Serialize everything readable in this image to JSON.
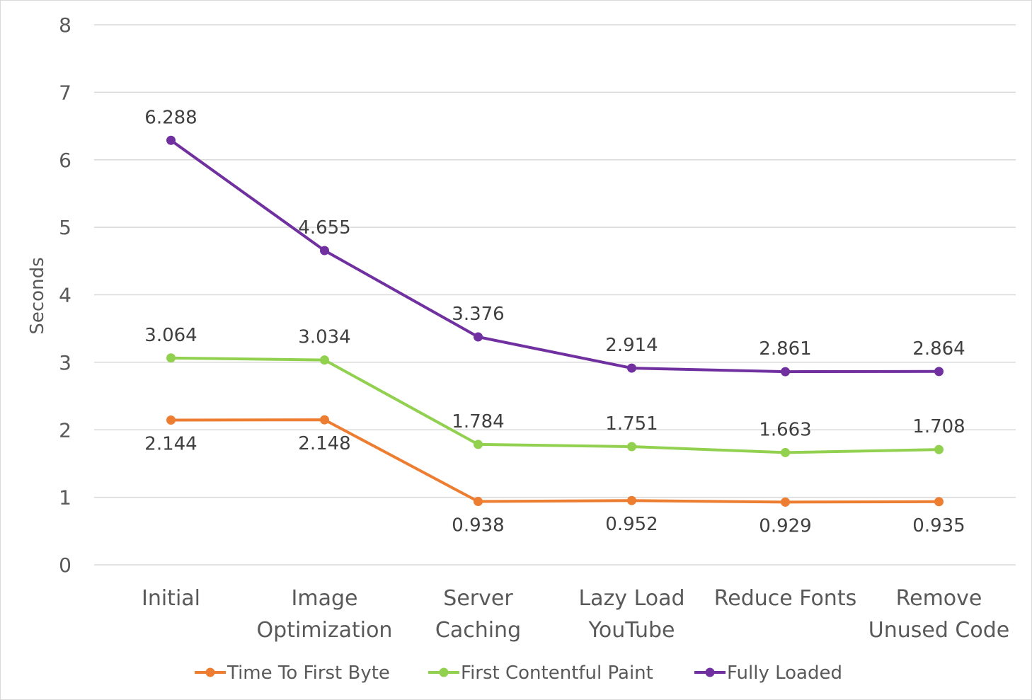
{
  "chart_data": {
    "type": "line",
    "ylabel": "Seconds",
    "ylim": [
      0,
      8
    ],
    "yticks": [
      0,
      1,
      2,
      3,
      4,
      5,
      6,
      7,
      8
    ],
    "grid": true,
    "legend_position": "bottom",
    "categories": [
      [
        "Initial"
      ],
      [
        "Image",
        "Optimization"
      ],
      [
        "Server",
        "Caching"
      ],
      [
        "Lazy Load",
        "YouTube"
      ],
      [
        "Reduce Fonts"
      ],
      [
        "Remove",
        "Unused Code"
      ]
    ],
    "series": [
      {
        "name": "Time To First Byte",
        "color": "#ed7d31",
        "values": [
          2.144,
          2.148,
          0.938,
          0.952,
          0.929,
          0.935
        ],
        "labels": [
          "2.144",
          "2.148",
          "0.938",
          "0.952",
          "0.929",
          "0.935"
        ],
        "label_position": "below"
      },
      {
        "name": "First Contentful Paint",
        "color": "#92d050",
        "values": [
          3.064,
          3.034,
          1.784,
          1.751,
          1.663,
          1.708
        ],
        "labels": [
          "3.064",
          "3.034",
          "1.784",
          "1.751",
          "1.663",
          "1.708"
        ],
        "label_position": "above"
      },
      {
        "name": "Fully Loaded",
        "color": "#7030a0",
        "values": [
          6.288,
          4.655,
          3.376,
          2.914,
          2.861,
          2.864
        ],
        "labels": [
          "6.288",
          "4.655",
          "3.376",
          "2.914",
          "2.861",
          "2.864"
        ],
        "label_position": "above"
      }
    ]
  }
}
